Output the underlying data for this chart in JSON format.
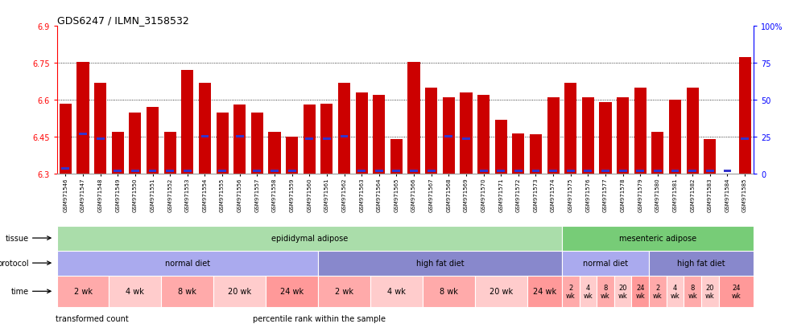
{
  "title": "GDS6247 / ILMN_3158532",
  "samples": [
    "GSM971546",
    "GSM971547",
    "GSM971548",
    "GSM971549",
    "GSM971550",
    "GSM971551",
    "GSM971552",
    "GSM971553",
    "GSM971554",
    "GSM971555",
    "GSM971556",
    "GSM971557",
    "GSM971558",
    "GSM971559",
    "GSM971560",
    "GSM971561",
    "GSM971562",
    "GSM971563",
    "GSM971564",
    "GSM971565",
    "GSM971566",
    "GSM971567",
    "GSM971568",
    "GSM971569",
    "GSM971570",
    "GSM971571",
    "GSM971572",
    "GSM971573",
    "GSM971574",
    "GSM971575",
    "GSM971576",
    "GSM971577",
    "GSM971578",
    "GSM971579",
    "GSM971580",
    "GSM971581",
    "GSM971582",
    "GSM971583",
    "GSM971584",
    "GSM971585"
  ],
  "bar_values": [
    6.585,
    6.755,
    6.67,
    6.47,
    6.55,
    6.57,
    6.47,
    6.72,
    6.67,
    6.55,
    6.58,
    6.55,
    6.47,
    6.45,
    6.58,
    6.585,
    6.67,
    6.63,
    6.62,
    6.44,
    6.755,
    6.65,
    6.61,
    6.63,
    6.62,
    6.52,
    6.465,
    6.46,
    6.61,
    6.67,
    6.61,
    6.59,
    6.61,
    6.65,
    6.47,
    6.6,
    6.65,
    6.44,
    6.3,
    6.775
  ],
  "percentile_values": [
    6.322,
    6.462,
    6.442,
    6.312,
    6.312,
    6.312,
    6.312,
    6.312,
    6.452,
    6.312,
    6.452,
    6.312,
    6.312,
    6.312,
    6.442,
    6.442,
    6.452,
    6.312,
    6.312,
    6.312,
    6.312,
    6.312,
    6.452,
    6.442,
    6.312,
    6.312,
    6.312,
    6.312,
    6.312,
    6.312,
    6.312,
    6.312,
    6.312,
    6.312,
    6.312,
    6.312,
    6.312,
    6.312,
    6.312,
    6.442
  ],
  "y_min": 6.3,
  "y_max": 6.9,
  "y_ticks": [
    6.3,
    6.45,
    6.6,
    6.75,
    6.9
  ],
  "y_right_ticks": [
    0,
    25,
    50,
    75,
    100
  ],
  "bar_color": "#cc0000",
  "percentile_color": "#3333cc",
  "bg_color": "#ffffff",
  "tissue": [
    {
      "label": "epididymal adipose",
      "start": 0,
      "end": 29,
      "color": "#aaddaa"
    },
    {
      "label": "mesenteric adipose",
      "start": 29,
      "end": 40,
      "color": "#77cc77"
    }
  ],
  "protocol": [
    {
      "label": "normal diet",
      "start": 0,
      "end": 15,
      "color": "#aaaaee"
    },
    {
      "label": "high fat diet",
      "start": 15,
      "end": 29,
      "color": "#8888cc"
    },
    {
      "label": "normal diet",
      "start": 29,
      "end": 34,
      "color": "#aaaaee"
    },
    {
      "label": "high fat diet",
      "start": 34,
      "end": 40,
      "color": "#8888cc"
    }
  ],
  "time": [
    {
      "label": "2 wk",
      "start": 0,
      "end": 3,
      "color": "#ffaaaa"
    },
    {
      "label": "4 wk",
      "start": 3,
      "end": 6,
      "color": "#ffcccc"
    },
    {
      "label": "8 wk",
      "start": 6,
      "end": 9,
      "color": "#ffaaaa"
    },
    {
      "label": "20 wk",
      "start": 9,
      "end": 12,
      "color": "#ffcccc"
    },
    {
      "label": "24 wk",
      "start": 12,
      "end": 15,
      "color": "#ff9999"
    },
    {
      "label": "2 wk",
      "start": 15,
      "end": 18,
      "color": "#ffaaaa"
    },
    {
      "label": "4 wk",
      "start": 18,
      "end": 21,
      "color": "#ffcccc"
    },
    {
      "label": "8 wk",
      "start": 21,
      "end": 24,
      "color": "#ffaaaa"
    },
    {
      "label": "20 wk",
      "start": 24,
      "end": 27,
      "color": "#ffcccc"
    },
    {
      "label": "24 wk",
      "start": 27,
      "end": 29,
      "color": "#ff9999"
    },
    {
      "label": "2\nwk",
      "start": 29,
      "end": 30,
      "color": "#ffaaaa"
    },
    {
      "label": "4\nwk",
      "start": 30,
      "end": 31,
      "color": "#ffcccc"
    },
    {
      "label": "8\nwk",
      "start": 31,
      "end": 32,
      "color": "#ffaaaa"
    },
    {
      "label": "20\nwk",
      "start": 32,
      "end": 33,
      "color": "#ffcccc"
    },
    {
      "label": "24\nwk",
      "start": 33,
      "end": 34,
      "color": "#ff9999"
    },
    {
      "label": "2\nwk",
      "start": 34,
      "end": 35,
      "color": "#ffaaaa"
    },
    {
      "label": "4\nwk",
      "start": 35,
      "end": 36,
      "color": "#ffcccc"
    },
    {
      "label": "8\nwk",
      "start": 36,
      "end": 37,
      "color": "#ffaaaa"
    },
    {
      "label": "20\nwk",
      "start": 37,
      "end": 38,
      "color": "#ffcccc"
    },
    {
      "label": "24\nwk",
      "start": 38,
      "end": 40,
      "color": "#ff9999"
    }
  ],
  "legend_items": [
    {
      "label": "transformed count",
      "color": "#cc0000"
    },
    {
      "label": "percentile rank within the sample",
      "color": "#3333cc"
    }
  ]
}
